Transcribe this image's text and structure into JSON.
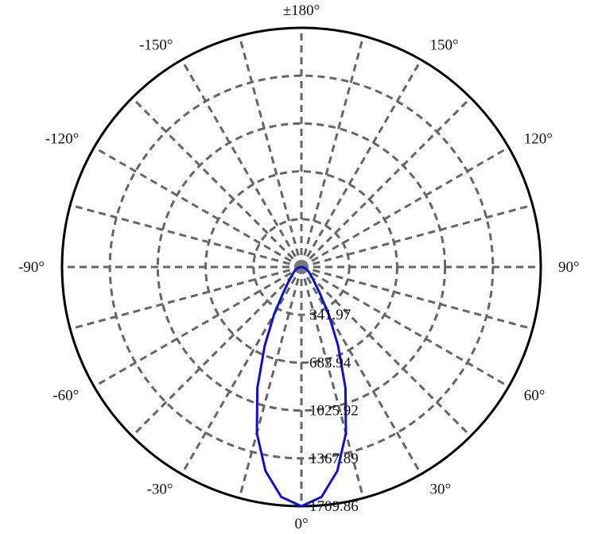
{
  "chart_data": {
    "type": "polar",
    "radial_ticks": [
      341.97,
      683.94,
      1025.92,
      1367.89,
      1709.86
    ],
    "radial_tick_labels": [
      "341.97",
      "683.94",
      "1025.92",
      "1367.89",
      "1709.86"
    ],
    "rmax": 1709.86,
    "angle_ticks": [
      0,
      30,
      60,
      90,
      120,
      150,
      180,
      -150,
      -120,
      -90,
      -60,
      -30
    ],
    "angle_labels": [
      "0°",
      "30°",
      "60°",
      "90°",
      "120°",
      "150°",
      "±180°",
      "-150°",
      "-120°",
      "-90°",
      "-60°",
      "-30°"
    ],
    "zero_direction": "bottom",
    "angle_direction": "counterclockwise",
    "grid": true,
    "spoke_step_deg": 15,
    "series": [
      {
        "color": "#1010cc",
        "theta_deg": [
          -90,
          -80,
          -70,
          -60,
          -50,
          -45,
          -40,
          -35,
          -30,
          -25,
          -20,
          -15,
          -10,
          -5,
          0,
          5,
          10,
          15,
          20,
          25,
          30,
          35,
          40,
          45,
          50,
          60,
          70,
          80,
          90
        ],
        "r": [
          0,
          15,
          35,
          55,
          85,
          110,
          150,
          230,
          390,
          620,
          920,
          1230,
          1480,
          1650,
          1709.86,
          1650,
          1480,
          1230,
          920,
          620,
          390,
          230,
          150,
          110,
          85,
          55,
          35,
          15,
          0
        ]
      }
    ],
    "colors": {
      "grid": "#666666",
      "outer": "#000000",
      "center": "#777777"
    }
  }
}
